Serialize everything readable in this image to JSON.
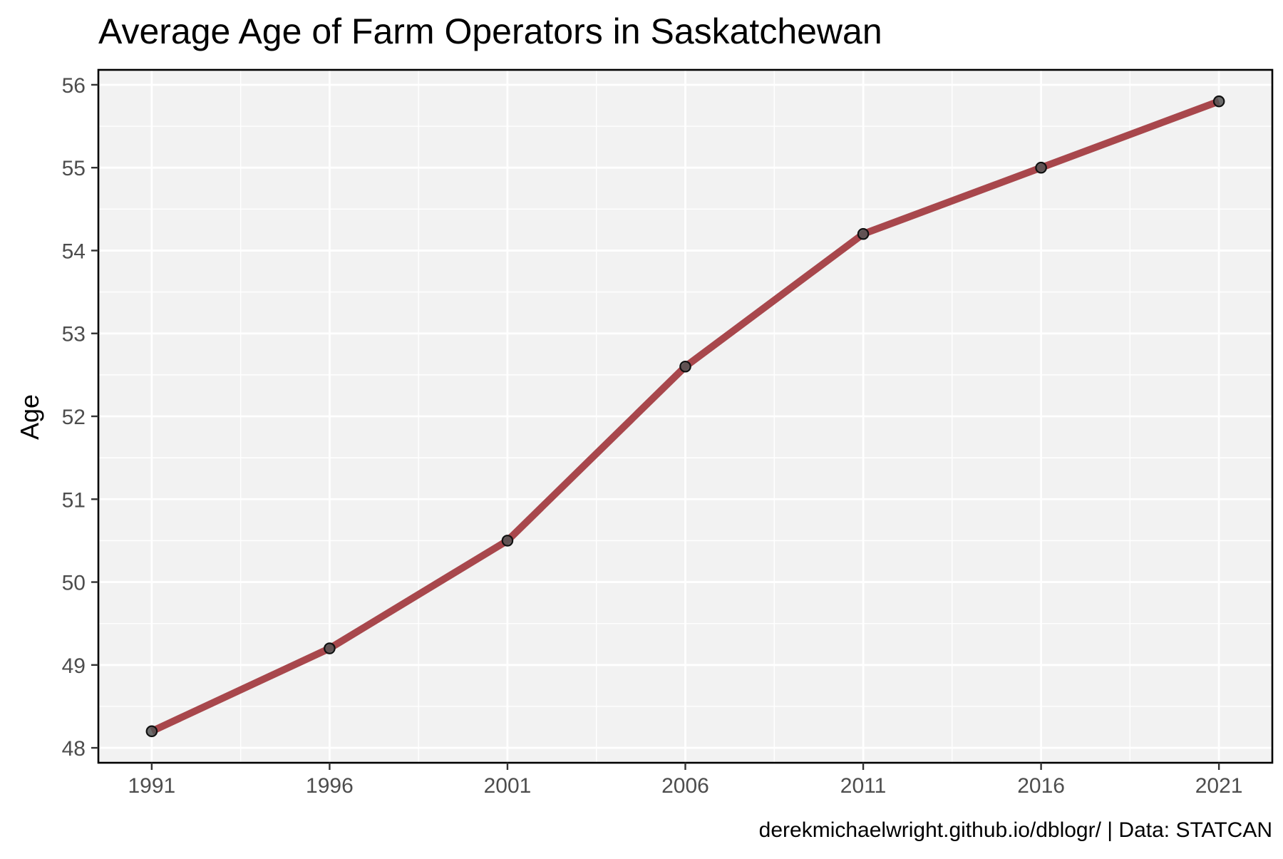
{
  "chart_data": {
    "type": "line",
    "title": "Average Age of Farm Operators in Saskatchewan",
    "xlabel": "",
    "ylabel": "Age",
    "caption": "derekmichaelwright.github.io/dblogr/ | Data: STATCAN",
    "x": [
      1991,
      1996,
      2001,
      2006,
      2011,
      2016,
      2021
    ],
    "series": [
      {
        "values": [
          48.2,
          49.2,
          50.5,
          52.6,
          54.2,
          55.0,
          55.8
        ]
      }
    ],
    "x_ticks": [
      "1991",
      "1996",
      "2001",
      "2006",
      "2011",
      "2016",
      "2021"
    ],
    "y_ticks": [
      "48",
      "49",
      "50",
      "51",
      "52",
      "53",
      "54",
      "55",
      "56"
    ],
    "xlim": [
      1989.5,
      1022.5
    ],
    "ylim": [
      47.82,
      56.18
    ],
    "grid": true,
    "legend": "none",
    "colors": {
      "line": "#A8474C",
      "point_fill": "#555555",
      "point_stroke": "#111111",
      "panel_background": "#F2F2F2",
      "grid": "#FFFFFF",
      "panel_border": "#000000",
      "tick_label": "#4D4D4D",
      "title": "#000000",
      "caption": "#000000"
    }
  }
}
